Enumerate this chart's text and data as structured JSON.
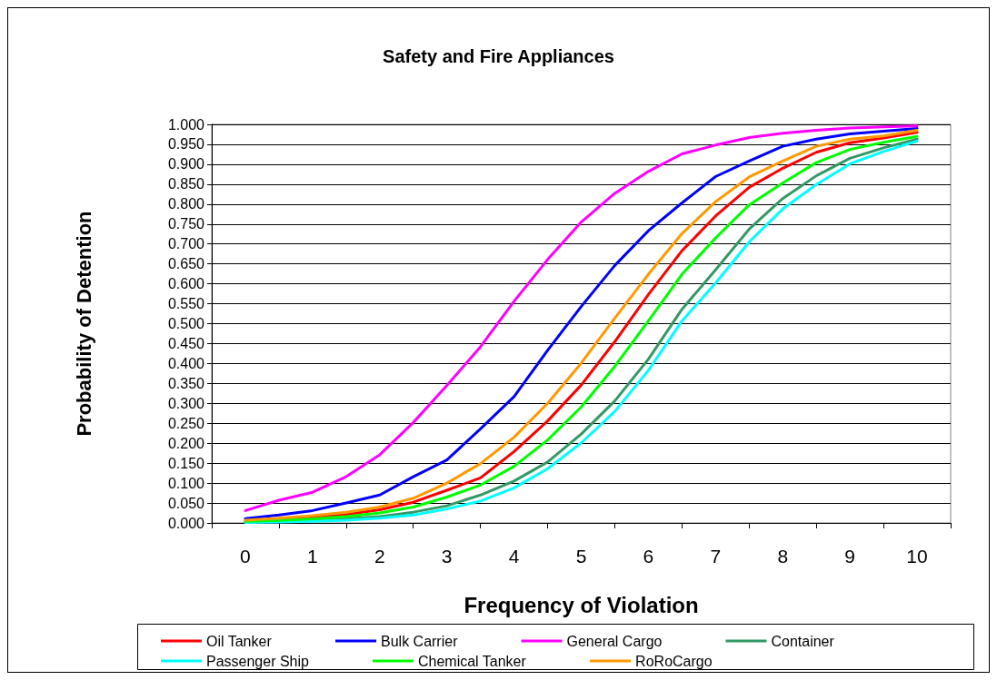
{
  "chart_data": {
    "type": "line",
    "title": "Safety and Fire Appliances",
    "xlabel": "Frequency of Violation",
    "ylabel": "Probability of Detention",
    "x": [
      0,
      0.5,
      1,
      1.5,
      2,
      2.5,
      3,
      3.5,
      4,
      4.5,
      5,
      5.5,
      6,
      6.5,
      7,
      7.5,
      8,
      8.5,
      9,
      9.5,
      10
    ],
    "series": [
      {
        "name": "Oil Tanker",
        "color": "#ff0000",
        "values": [
          0.005,
          0.008,
          0.013,
          0.021,
          0.033,
          0.052,
          0.082,
          0.113,
          0.179,
          0.256,
          0.346,
          0.455,
          0.573,
          0.683,
          0.77,
          0.842,
          0.89,
          0.93,
          0.954,
          0.966,
          0.98
        ]
      },
      {
        "name": "Bulk Carrier",
        "color": "#0000ff",
        "values": [
          0.011,
          0.02,
          0.031,
          0.05,
          0.07,
          0.116,
          0.158,
          0.236,
          0.317,
          0.433,
          0.543,
          0.646,
          0.733,
          0.803,
          0.869,
          0.908,
          0.945,
          0.963,
          0.976,
          0.983,
          0.99
        ]
      },
      {
        "name": "General Cargo",
        "color": "#ff00ff",
        "values": [
          0.031,
          0.057,
          0.077,
          0.116,
          0.171,
          0.252,
          0.345,
          0.442,
          0.556,
          0.661,
          0.755,
          0.827,
          0.882,
          0.926,
          0.948,
          0.967,
          0.978,
          0.985,
          0.991,
          0.994,
          0.996
        ]
      },
      {
        "name": "Container",
        "color": "#339966",
        "values": [
          0.002,
          0.004,
          0.006,
          0.01,
          0.016,
          0.027,
          0.043,
          0.07,
          0.105,
          0.153,
          0.223,
          0.306,
          0.411,
          0.536,
          0.635,
          0.737,
          0.814,
          0.871,
          0.915,
          0.941,
          0.963
        ]
      },
      {
        "name": "Passenger Ship",
        "color": "#00ffff",
        "values": [
          0.001,
          0.002,
          0.004,
          0.007,
          0.012,
          0.02,
          0.035,
          0.055,
          0.088,
          0.136,
          0.201,
          0.28,
          0.383,
          0.507,
          0.602,
          0.705,
          0.788,
          0.849,
          0.901,
          0.932,
          0.958
        ]
      },
      {
        "name": "Chemical Tanker",
        "color": "#00ff00",
        "values": [
          0.004,
          0.006,
          0.01,
          0.016,
          0.025,
          0.04,
          0.065,
          0.095,
          0.142,
          0.208,
          0.291,
          0.393,
          0.507,
          0.624,
          0.715,
          0.798,
          0.853,
          0.904,
          0.937,
          0.955,
          0.97
        ]
      },
      {
        "name": "RoRoCargo",
        "color": "#ff9900",
        "values": [
          0.007,
          0.012,
          0.018,
          0.027,
          0.04,
          0.062,
          0.1,
          0.149,
          0.215,
          0.3,
          0.401,
          0.514,
          0.624,
          0.726,
          0.806,
          0.868,
          0.908,
          0.945,
          0.963,
          0.971,
          0.985
        ]
      }
    ],
    "xlim": [
      -0.5,
      10.5
    ],
    "xticks": [
      {
        "value": -0.5,
        "label": null
      },
      0,
      {
        "value": 0.5,
        "label": null
      },
      1,
      {
        "value": 1.5,
        "label": null
      },
      2,
      {
        "value": 2.5,
        "label": null
      },
      3,
      {
        "value": 3.5,
        "label": null
      },
      4,
      {
        "value": 4.5,
        "label": null
      },
      5,
      {
        "value": 5.5,
        "label": null
      },
      6,
      {
        "value": 6.5,
        "label": null
      },
      7,
      {
        "value": 7.5,
        "label": null
      },
      8,
      {
        "value": 8.5,
        "label": null
      },
      9,
      {
        "value": 9.5,
        "label": null
      },
      10,
      {
        "value": 10.5,
        "label": null
      }
    ],
    "ylim": [
      0,
      1
    ],
    "yticks": [
      {
        "value": 0,
        "label": "0.000"
      },
      {
        "value": 0.05,
        "label": "0.050"
      },
      {
        "value": 0.1,
        "label": "0.100"
      },
      {
        "value": 0.15,
        "label": "0.150"
      },
      {
        "value": 0.2,
        "label": "0.200"
      },
      {
        "value": 0.25,
        "label": "0.250"
      },
      {
        "value": 0.3,
        "label": "0.300"
      },
      {
        "value": 0.35,
        "label": "0.350"
      },
      {
        "value": 0.4,
        "label": "0.400"
      },
      {
        "value": 0.45,
        "label": "0.450"
      },
      {
        "value": 0.5,
        "label": "0.500"
      },
      {
        "value": 0.55,
        "label": "0.550"
      },
      {
        "value": 0.6,
        "label": "0.600"
      },
      {
        "value": 0.65,
        "label": "0.650"
      },
      {
        "value": 0.7,
        "label": "0.700"
      },
      {
        "value": 0.75,
        "label": "0.750"
      },
      {
        "value": 0.8,
        "label": "0.800"
      },
      {
        "value": 0.85,
        "label": "0.850"
      },
      {
        "value": 0.9,
        "label": "0.900"
      },
      {
        "value": 0.95,
        "label": "0.950"
      },
      {
        "value": 1,
        "label": "1.000"
      }
    ],
    "grid": "y",
    "legend": "bottom",
    "marker": "none",
    "line_style": "solid"
  }
}
